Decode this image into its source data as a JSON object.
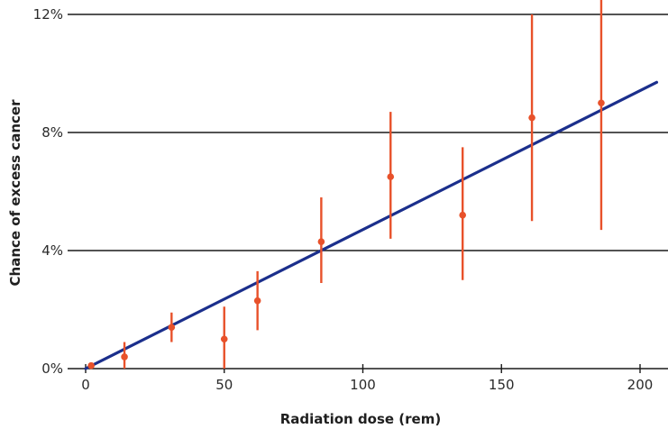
{
  "chart_data": {
    "type": "scatter",
    "title": "",
    "xlabel": "Radiation dose (rem)",
    "ylabel": "Chance of excess cancer",
    "xlim": [
      -5,
      210
    ],
    "ylim": [
      0,
      12
    ],
    "x_ticks": [
      0,
      50,
      100,
      150,
      200
    ],
    "x_tick_labels": [
      "0",
      "50",
      "100",
      "150",
      "200"
    ],
    "y_ticks": [
      0,
      4,
      8,
      12
    ],
    "y_tick_labels": [
      "0%",
      "4%",
      "8%",
      "12%"
    ],
    "grid": "horizontal",
    "series": [
      {
        "type": "scatter-errorbar",
        "color": "#e8512a",
        "points": [
          {
            "x": 2,
            "y": 0.1,
            "low": 0.0,
            "high": 0.2
          },
          {
            "x": 14,
            "y": 0.4,
            "low": 0.0,
            "high": 0.9
          },
          {
            "x": 31,
            "y": 1.4,
            "low": 0.9,
            "high": 1.9
          },
          {
            "x": 50,
            "y": 1.0,
            "low": 0.0,
            "high": 2.1
          },
          {
            "x": 62,
            "y": 2.3,
            "low": 1.3,
            "high": 3.3
          },
          {
            "x": 85,
            "y": 4.3,
            "low": 2.9,
            "high": 5.8
          },
          {
            "x": 110,
            "y": 6.5,
            "low": 4.4,
            "high": 8.7
          },
          {
            "x": 136,
            "y": 5.2,
            "low": 3.0,
            "high": 7.5
          },
          {
            "x": 161,
            "y": 8.5,
            "low": 5.0,
            "high": 12.0
          },
          {
            "x": 186,
            "y": 9.0,
            "low": 4.7,
            "high": 12.5
          }
        ]
      },
      {
        "type": "line",
        "color": "#1b2f8c",
        "x": [
          0,
          206
        ],
        "y": [
          0,
          9.7
        ]
      }
    ]
  }
}
